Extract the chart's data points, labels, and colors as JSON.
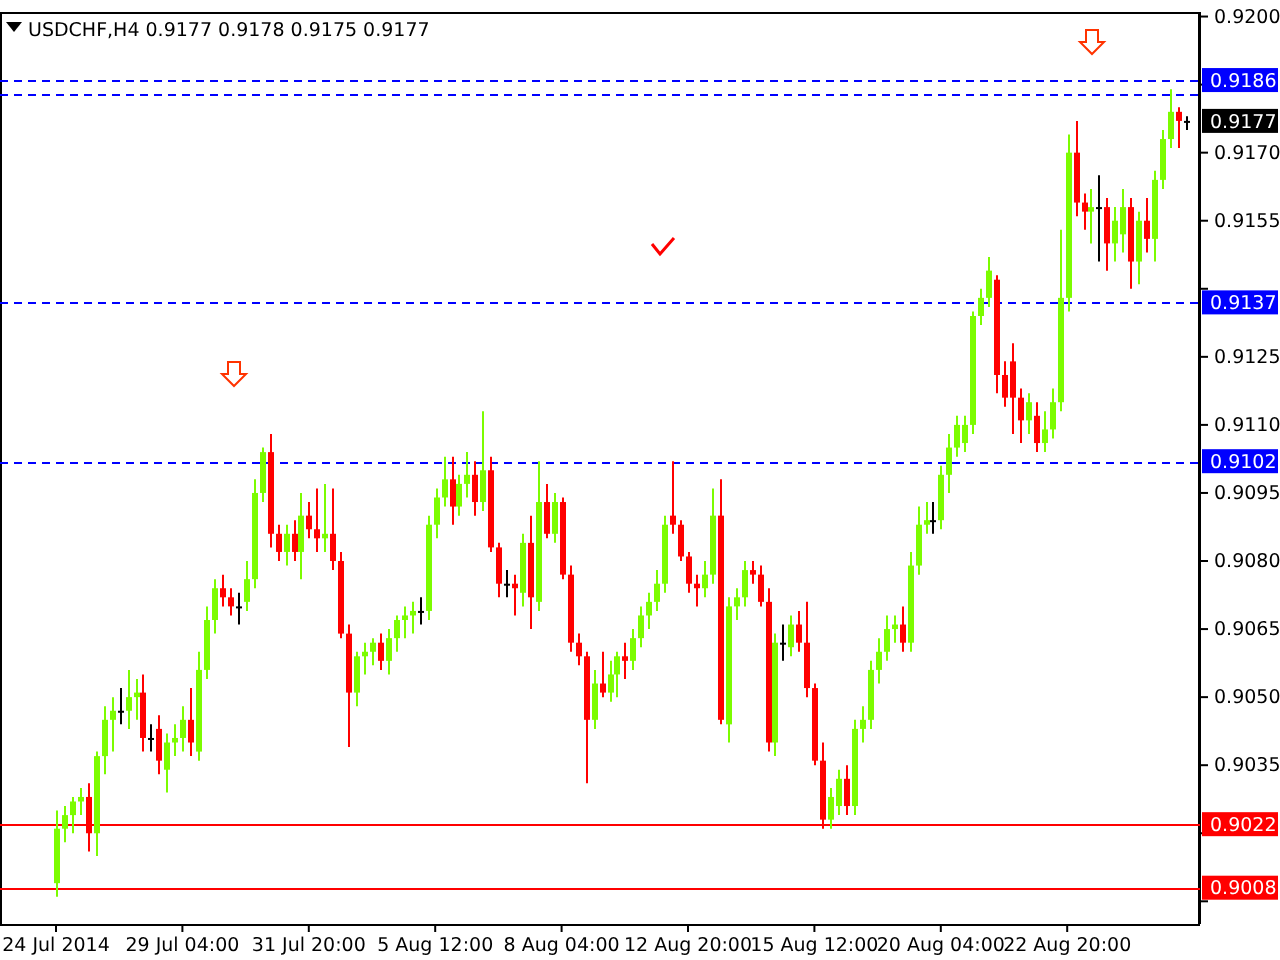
{
  "chart_data": {
    "type": "candlestick",
    "title": "USDCHF,H4  0.9177 0.9178 0.9175 0.9177",
    "categories": [
      "24 Jul 2014",
      null,
      null,
      null,
      null,
      null,
      null,
      null,
      null,
      null,
      null,
      null,
      null,
      null,
      null,
      null,
      "29 Jul 04:00",
      null,
      null,
      null,
      null,
      null,
      null,
      null,
      null,
      null,
      null,
      null,
      null,
      null,
      null,
      null,
      "31 Jul 20:00",
      null,
      null,
      null,
      null,
      null,
      null,
      null,
      null,
      null,
      null,
      null,
      null,
      null,
      null,
      null,
      "5 Aug 12:00",
      null,
      null,
      null,
      null,
      null,
      null,
      null,
      null,
      null,
      null,
      null,
      null,
      null,
      null,
      null,
      "8 Aug 04:00",
      null,
      null,
      null,
      null,
      null,
      null,
      null,
      null,
      null,
      null,
      null,
      null,
      null,
      null,
      null,
      "12 Aug 20:00",
      null,
      null,
      null,
      null,
      null,
      null,
      null,
      null,
      null,
      null,
      null,
      null,
      null,
      null,
      null,
      "15 Aug 12:00",
      null,
      null,
      null,
      null,
      null,
      null,
      null,
      null,
      null,
      null,
      null,
      null,
      null,
      null,
      null,
      "20 Aug 04:00",
      null,
      null,
      null,
      null,
      null,
      null,
      null,
      null,
      null,
      null,
      null,
      null,
      null,
      null,
      null,
      "22 Aug 20:00",
      null,
      null,
      null,
      null,
      null,
      null,
      null,
      null,
      null,
      null,
      null,
      null,
      null,
      null,
      null
    ],
    "ohlc": [
      [
        0.9009,
        0.9025,
        0.9006,
        0.9021
      ],
      [
        0.9021,
        0.9026,
        0.9018,
        0.9024
      ],
      [
        0.9024,
        0.9028,
        0.902,
        0.9027
      ],
      [
        0.9027,
        0.903,
        0.9024,
        0.9028
      ],
      [
        0.9028,
        0.9031,
        0.9016,
        0.902
      ],
      [
        0.902,
        0.9038,
        0.9015,
        0.9037
      ],
      [
        0.9037,
        0.9048,
        0.9033,
        0.9045
      ],
      [
        0.9045,
        0.905,
        0.9038,
        0.9047
      ],
      [
        0.9047,
        0.9052,
        0.9044,
        0.9047
      ],
      [
        0.9047,
        0.9056,
        0.9043,
        0.905
      ],
      [
        0.905,
        0.9054,
        0.9045,
        0.9051
      ],
      [
        0.9051,
        0.9055,
        0.9038,
        0.9041
      ],
      [
        0.9041,
        0.9044,
        0.9038,
        0.9041
      ],
      [
        0.9043,
        0.9046,
        0.9033,
        0.9036
      ],
      [
        0.9034,
        0.9042,
        0.9029,
        0.904
      ],
      [
        0.904,
        0.9044,
        0.9037,
        0.9041
      ],
      [
        0.9041,
        0.9048,
        0.9038,
        0.9045
      ],
      [
        0.9045,
        0.9052,
        0.9037,
        0.904
      ],
      [
        0.9038,
        0.906,
        0.9036,
        0.9056
      ],
      [
        0.9056,
        0.907,
        0.9054,
        0.9067
      ],
      [
        0.9067,
        0.9076,
        0.9064,
        0.9074
      ],
      [
        0.9074,
        0.9077,
        0.907,
        0.9072
      ],
      [
        0.9072,
        0.9074,
        0.9068,
        0.907
      ],
      [
        0.907,
        0.9073,
        0.9066,
        0.907
      ],
      [
        0.9071,
        0.908,
        0.9069,
        0.9076
      ],
      [
        0.9076,
        0.9098,
        0.9074,
        0.9095
      ],
      [
        0.9095,
        0.9105,
        0.9093,
        0.9104
      ],
      [
        0.9104,
        0.9108,
        0.9083,
        0.9086
      ],
      [
        0.9086,
        0.9088,
        0.908,
        0.9082
      ],
      [
        0.9082,
        0.9088,
        0.9079,
        0.9086
      ],
      [
        0.9086,
        0.9089,
        0.908,
        0.9082
      ],
      [
        0.9082,
        0.9095,
        0.9076,
        0.909
      ],
      [
        0.909,
        0.9093,
        0.9085,
        0.9087
      ],
      [
        0.9087,
        0.9096,
        0.9082,
        0.9085
      ],
      [
        0.9085,
        0.9097,
        0.9082,
        0.9086
      ],
      [
        0.9086,
        0.9096,
        0.9078,
        0.908
      ],
      [
        0.908,
        0.9082,
        0.9063,
        0.9064
      ],
      [
        0.9064,
        0.9066,
        0.9039,
        0.9051
      ],
      [
        0.9051,
        0.906,
        0.9048,
        0.9059
      ],
      [
        0.9059,
        0.9062,
        0.9055,
        0.906
      ],
      [
        0.906,
        0.9063,
        0.9057,
        0.9062
      ],
      [
        0.9062,
        0.9064,
        0.9056,
        0.9058
      ],
      [
        0.9058,
        0.9065,
        0.9055,
        0.9063
      ],
      [
        0.9063,
        0.9068,
        0.906,
        0.9067
      ],
      [
        0.9067,
        0.907,
        0.9063,
        0.9068
      ],
      [
        0.9068,
        0.9071,
        0.9064,
        0.9069
      ],
      [
        0.9069,
        0.9072,
        0.9066,
        0.9069
      ],
      [
        0.9069,
        0.909,
        0.9067,
        0.9088
      ],
      [
        0.9088,
        0.9096,
        0.9085,
        0.9094
      ],
      [
        0.9094,
        0.9103,
        0.9092,
        0.9098
      ],
      [
        0.9098,
        0.9103,
        0.9088,
        0.9092
      ],
      [
        0.9092,
        0.9099,
        0.909,
        0.9097
      ],
      [
        0.9097,
        0.9104,
        0.9094,
        0.9099
      ],
      [
        0.9099,
        0.9102,
        0.909,
        0.9093
      ],
      [
        0.9093,
        0.9113,
        0.9091,
        0.91
      ],
      [
        0.91,
        0.9103,
        0.9082,
        0.9083
      ],
      [
        0.9083,
        0.9084,
        0.9072,
        0.9075
      ],
      [
        0.9075,
        0.9078,
        0.9072,
        0.9075
      ],
      [
        0.9075,
        0.9077,
        0.9068,
        0.9074
      ],
      [
        0.9073,
        0.9086,
        0.907,
        0.9084
      ],
      [
        0.9084,
        0.909,
        0.9065,
        0.9072
      ],
      [
        0.9071,
        0.9102,
        0.9069,
        0.9093
      ],
      [
        0.9093,
        0.9097,
        0.9085,
        0.9086
      ],
      [
        0.9086,
        0.9095,
        0.9084,
        0.9093
      ],
      [
        0.9093,
        0.9094,
        0.9076,
        0.9077
      ],
      [
        0.9077,
        0.9079,
        0.906,
        0.9062
      ],
      [
        0.9062,
        0.9064,
        0.9057,
        0.9059
      ],
      [
        0.9059,
        0.906,
        0.9031,
        0.9045
      ],
      [
        0.9045,
        0.9056,
        0.9043,
        0.9053
      ],
      [
        0.9053,
        0.906,
        0.905,
        0.9051
      ],
      [
        0.9051,
        0.9058,
        0.9049,
        0.9055
      ],
      [
        0.9055,
        0.906,
        0.905,
        0.9059
      ],
      [
        0.9059,
        0.9062,
        0.9054,
        0.9058
      ],
      [
        0.9058,
        0.9065,
        0.9056,
        0.9063
      ],
      [
        0.9063,
        0.907,
        0.9061,
        0.9068
      ],
      [
        0.9068,
        0.9073,
        0.9065,
        0.9071
      ],
      [
        0.9071,
        0.9078,
        0.9069,
        0.9075
      ],
      [
        0.9075,
        0.909,
        0.9073,
        0.9088
      ],
      [
        0.909,
        0.9102,
        0.9086,
        0.9088
      ],
      [
        0.9088,
        0.9089,
        0.908,
        0.9081
      ],
      [
        0.9081,
        0.9082,
        0.9073,
        0.9075
      ],
      [
        0.9075,
        0.9077,
        0.907,
        0.9074
      ],
      [
        0.9074,
        0.908,
        0.9072,
        0.9077
      ],
      [
        0.9077,
        0.9096,
        0.9075,
        0.909
      ],
      [
        0.909,
        0.9098,
        0.9044,
        0.9045
      ],
      [
        0.9044,
        0.9072,
        0.904,
        0.907
      ],
      [
        0.907,
        0.9074,
        0.9067,
        0.9072
      ],
      [
        0.9072,
        0.908,
        0.907,
        0.9078
      ],
      [
        0.9078,
        0.908,
        0.9075,
        0.9077
      ],
      [
        0.9077,
        0.9079,
        0.907,
        0.9071
      ],
      [
        0.9071,
        0.9074,
        0.9038,
        0.904
      ],
      [
        0.904,
        0.9064,
        0.9037,
        0.9062
      ],
      [
        0.9062,
        0.9066,
        0.9058,
        0.9062
      ],
      [
        0.9061,
        0.9068,
        0.9059,
        0.9066
      ],
      [
        0.9066,
        0.9069,
        0.906,
        0.9062
      ],
      [
        0.9062,
        0.9071,
        0.905,
        0.9052
      ],
      [
        0.9052,
        0.9053,
        0.9035,
        0.9036
      ],
      [
        0.9036,
        0.904,
        0.9021,
        0.9023
      ],
      [
        0.9023,
        0.903,
        0.9021,
        0.9028
      ],
      [
        0.9026,
        0.9034,
        0.9024,
        0.9032
      ],
      [
        0.9032,
        0.9035,
        0.9024,
        0.9026
      ],
      [
        0.9026,
        0.9045,
        0.9024,
        0.9043
      ],
      [
        0.9043,
        0.9048,
        0.904,
        0.9045
      ],
      [
        0.9045,
        0.9058,
        0.9043,
        0.9056
      ],
      [
        0.9056,
        0.9063,
        0.9053,
        0.906
      ],
      [
        0.906,
        0.9068,
        0.9058,
        0.9065
      ],
      [
        0.9065,
        0.9068,
        0.9062,
        0.9066
      ],
      [
        0.9066,
        0.907,
        0.906,
        0.9062
      ],
      [
        0.9062,
        0.9082,
        0.906,
        0.9079
      ],
      [
        0.9079,
        0.9092,
        0.9077,
        0.9088
      ],
      [
        0.9088,
        0.9093,
        0.9086,
        0.9089
      ],
      [
        0.9089,
        0.9093,
        0.9086,
        0.9089
      ],
      [
        0.9089,
        0.9101,
        0.9087,
        0.9099
      ],
      [
        0.9099,
        0.9108,
        0.9095,
        0.9105
      ],
      [
        0.9105,
        0.9112,
        0.9103,
        0.911
      ],
      [
        0.9106,
        0.9112,
        0.9104,
        0.911
      ],
      [
        0.911,
        0.9135,
        0.9108,
        0.9134
      ],
      [
        0.9134,
        0.914,
        0.9132,
        0.9138
      ],
      [
        0.9138,
        0.9147,
        0.9136,
        0.9144
      ],
      [
        0.9142,
        0.9143,
        0.9117,
        0.9121
      ],
      [
        0.9121,
        0.9124,
        0.9114,
        0.9116
      ],
      [
        0.9124,
        0.9128,
        0.9108,
        0.9116
      ],
      [
        0.9116,
        0.9118,
        0.9106,
        0.9111
      ],
      [
        0.9111,
        0.9117,
        0.9108,
        0.9115
      ],
      [
        0.9112,
        0.9115,
        0.9104,
        0.9106
      ],
      [
        0.9106,
        0.9113,
        0.9104,
        0.9109
      ],
      [
        0.9109,
        0.9118,
        0.9107,
        0.9115
      ],
      [
        0.9115,
        0.9153,
        0.9113,
        0.9138
      ],
      [
        0.9138,
        0.9174,
        0.9135,
        0.917
      ],
      [
        0.917,
        0.9177,
        0.9156,
        0.9159
      ],
      [
        0.9159,
        0.9161,
        0.9153,
        0.9157
      ],
      [
        0.9157,
        0.9162,
        0.915,
        0.9158
      ],
      [
        0.9158,
        0.9165,
        0.9146,
        0.9158
      ],
      [
        0.9158,
        0.916,
        0.9144,
        0.915
      ],
      [
        0.915,
        0.9158,
        0.9146,
        0.9155
      ],
      [
        0.9152,
        0.9162,
        0.9148,
        0.9158
      ],
      [
        0.9158,
        0.916,
        0.914,
        0.9146
      ],
      [
        0.9146,
        0.9157,
        0.9141,
        0.9155
      ],
      [
        0.9155,
        0.916,
        0.9148,
        0.9151
      ],
      [
        0.9151,
        0.9166,
        0.9146,
        0.9164
      ],
      [
        0.9164,
        0.9175,
        0.9162,
        0.9173
      ],
      [
        0.9173,
        0.9184,
        0.9171,
        0.9179
      ],
      [
        0.9179,
        0.918,
        0.9171,
        0.9177
      ],
      [
        0.9177,
        0.9178,
        0.9175,
        0.9177
      ]
    ],
    "annotations": [
      "0.9177"
    ],
    "ylim": [
      0.9,
      0.9201
    ],
    "yticks": [
      {
        "value": 0.92,
        "label": "0.9200"
      },
      {
        "value": 0.9185,
        "label": null
      },
      {
        "value": 0.917,
        "label": "0.9170"
      },
      {
        "value": 0.9155,
        "label": "0.9155"
      },
      {
        "value": 0.914,
        "label": null
      },
      {
        "value": 0.9125,
        "label": "0.9125"
      },
      {
        "value": 0.911,
        "label": "0.9110"
      },
      {
        "value": 0.9095,
        "label": "0.9095"
      },
      {
        "value": 0.908,
        "label": "0.9080"
      },
      {
        "value": 0.9065,
        "label": "0.9065"
      },
      {
        "value": 0.905,
        "label": "0.9050"
      },
      {
        "value": 0.9035,
        "label": "0.9035"
      },
      {
        "value": 0.902,
        "label": null
      },
      {
        "value": 0.9005,
        "label": null
      }
    ],
    "ref_lines": [
      {
        "axis": "y",
        "value": 0.9186,
        "label": "0.9186",
        "color": "#0000ff",
        "line_style": "dashed"
      },
      {
        "axis": "y",
        "value": 0.9183,
        "label": null,
        "color": "#0000ff",
        "line_style": "dashed"
      },
      {
        "axis": "y",
        "value": 0.9137,
        "label": "0.9137",
        "color": "#0000ff",
        "line_style": "dashed"
      },
      {
        "axis": "y",
        "value": 0.9102,
        "label": "0.9102",
        "color": "#0000ff",
        "line_style": "dashed"
      },
      {
        "axis": "y",
        "value": 0.9022,
        "label": "0.9022",
        "color": "#ff0000",
        "line_style": "solid"
      },
      {
        "axis": "y",
        "value": 0.9008,
        "label": "0.9008",
        "color": "#ff0000",
        "line_style": "solid"
      }
    ],
    "grid": false
  }
}
